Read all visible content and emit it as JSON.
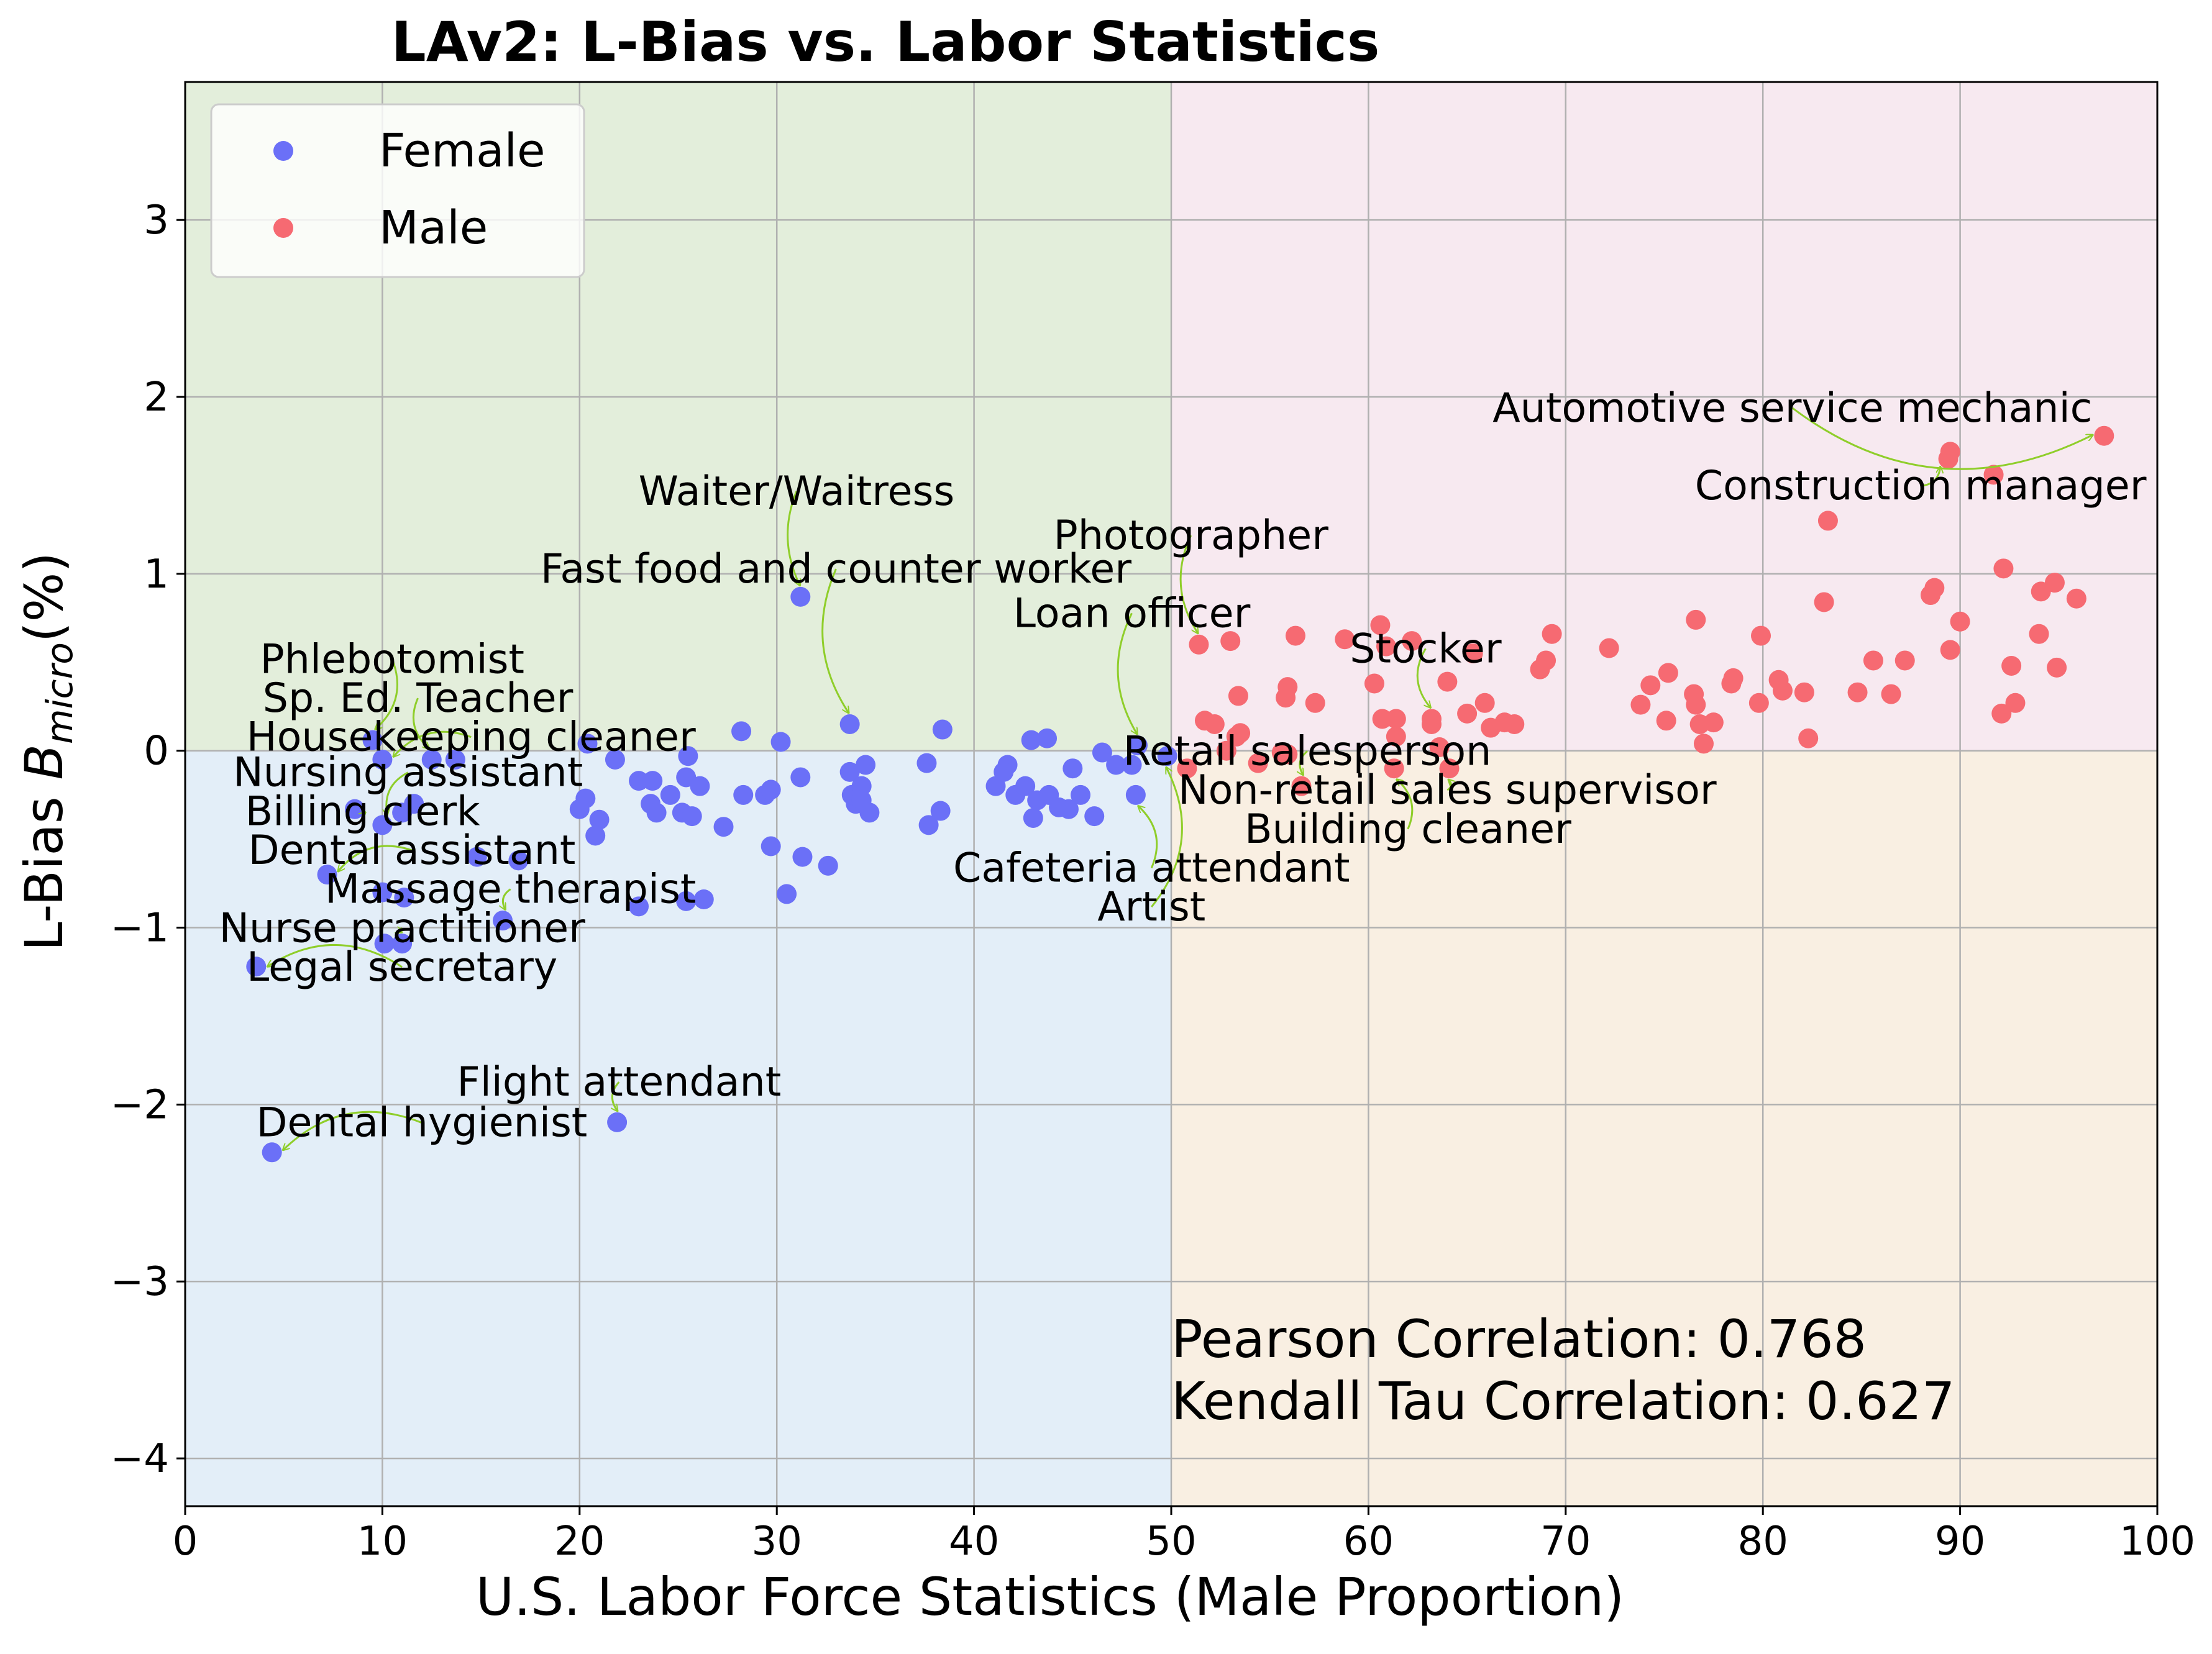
{
  "chart_data": {
    "type": "scatter",
    "title": "LAv2: L-Bias vs. Labor Statistics",
    "xlabel": "U.S. Labor Force Statistics (Male Proportion)",
    "ylabel_main": "L-Bias ",
    "ylabel_symbol": "B",
    "ylabel_sub": "micro",
    "ylabel_unit": "(%)",
    "xlim": [
      0,
      100
    ],
    "ylim": [
      -4.27,
      3.78
    ],
    "x_ticks": [
      0,
      10,
      20,
      30,
      40,
      50,
      60,
      70,
      80,
      90,
      100
    ],
    "y_ticks": [
      -4,
      -3,
      -2,
      -1,
      0,
      1,
      2,
      3
    ],
    "x_tick_labels": [
      "0",
      "10",
      "20",
      "30",
      "40",
      "50",
      "60",
      "70",
      "80",
      "90",
      "100"
    ],
    "y_tick_labels": [
      "−4",
      "−3",
      "−2",
      "−1",
      "0",
      "1",
      "2",
      "3"
    ],
    "grid": true,
    "legend_placement": "top-left",
    "quadrant_colors": {
      "top_left": "#e3eedb",
      "top_right": "#f7e9f0",
      "bottom_left": "#e3eef8",
      "bottom_right": "#f9efe2"
    },
    "arrow_color": "#8fce2a",
    "series": [
      {
        "name": "Female",
        "color": "#6b70f7",
        "points": [
          [
            4.4,
            -2.27
          ],
          [
            21.9,
            -2.1
          ],
          [
            3.6,
            -1.22
          ],
          [
            10.1,
            -1.09
          ],
          [
            11.0,
            -1.09
          ],
          [
            10.0,
            -0.8
          ],
          [
            11.1,
            -0.83
          ],
          [
            16.1,
            -0.96
          ],
          [
            23.0,
            -0.88
          ],
          [
            25.4,
            -0.85
          ],
          [
            26.3,
            -0.84
          ],
          [
            30.5,
            -0.81
          ],
          [
            32.6,
            -0.65
          ],
          [
            31.3,
            -0.6
          ],
          [
            14.8,
            -0.6
          ],
          [
            16.9,
            -0.62
          ],
          [
            7.2,
            -0.7
          ],
          [
            8.6,
            -0.33
          ],
          [
            10.0,
            -0.42
          ],
          [
            11.0,
            -0.35
          ],
          [
            11.6,
            -0.3
          ],
          [
            10.0,
            -0.05
          ],
          [
            12.5,
            -0.05
          ],
          [
            13.7,
            -0.05
          ],
          [
            9.5,
            0.06
          ],
          [
            20.4,
            0.04
          ],
          [
            20.3,
            -0.27
          ],
          [
            20.0,
            -0.33
          ],
          [
            21.0,
            -0.39
          ],
          [
            20.8,
            -0.48
          ],
          [
            21.8,
            -0.05
          ],
          [
            23.0,
            -0.17
          ],
          [
            23.7,
            -0.17
          ],
          [
            23.6,
            -0.3
          ],
          [
            24.6,
            -0.25
          ],
          [
            23.9,
            -0.35
          ],
          [
            25.2,
            -0.35
          ],
          [
            25.7,
            -0.37
          ],
          [
            25.4,
            -0.15
          ],
          [
            26.1,
            -0.2
          ],
          [
            25.5,
            -0.03
          ],
          [
            27.3,
            -0.43
          ],
          [
            28.2,
            0.11
          ],
          [
            28.3,
            -0.25
          ],
          [
            29.4,
            -0.25
          ],
          [
            29.7,
            -0.22
          ],
          [
            29.7,
            -0.54
          ],
          [
            30.2,
            0.05
          ],
          [
            31.2,
            -0.15
          ],
          [
            31.2,
            0.87
          ],
          [
            33.7,
            0.15
          ],
          [
            33.7,
            -0.12
          ],
          [
            34.0,
            -0.3
          ],
          [
            33.8,
            -0.25
          ],
          [
            34.3,
            -0.2
          ],
          [
            34.3,
            -0.28
          ],
          [
            34.5,
            -0.08
          ],
          [
            34.7,
            -0.35
          ],
          [
            37.6,
            -0.07
          ],
          [
            37.7,
            -0.42
          ],
          [
            38.3,
            -0.34
          ],
          [
            38.4,
            0.12
          ],
          [
            41.1,
            -0.2
          ],
          [
            41.7,
            -0.08
          ],
          [
            42.1,
            -0.25
          ],
          [
            42.6,
            -0.2
          ],
          [
            43.0,
            -0.38
          ],
          [
            42.9,
            0.06
          ],
          [
            43.2,
            -0.28
          ],
          [
            43.7,
            0.07
          ],
          [
            43.8,
            -0.25
          ],
          [
            44.3,
            -0.32
          ],
          [
            44.8,
            -0.33
          ],
          [
            45.0,
            -0.1
          ],
          [
            45.4,
            -0.25
          ],
          [
            46.1,
            -0.37
          ],
          [
            46.5,
            -0.01
          ],
          [
            47.2,
            -0.08
          ],
          [
            48.0,
            -0.08
          ],
          [
            48.3,
            0.03
          ],
          [
            48.2,
            -0.25
          ],
          [
            49.8,
            -0.03
          ],
          [
            41.5,
            -0.12
          ]
        ]
      },
      {
        "name": "Male",
        "color": "#f66a72",
        "points": [
          [
            97.3,
            1.78
          ],
          [
            89.5,
            1.69
          ],
          [
            89.4,
            1.65
          ],
          [
            91.7,
            1.56
          ],
          [
            83.3,
            1.3
          ],
          [
            92.2,
            1.03
          ],
          [
            94.8,
            0.95
          ],
          [
            88.7,
            0.92
          ],
          [
            88.5,
            0.88
          ],
          [
            94.1,
            0.9
          ],
          [
            95.9,
            0.86
          ],
          [
            83.1,
            0.84
          ],
          [
            90.0,
            0.73
          ],
          [
            76.6,
            0.74
          ],
          [
            89.5,
            0.57
          ],
          [
            94.0,
            0.66
          ],
          [
            79.9,
            0.65
          ],
          [
            69.3,
            0.66
          ],
          [
            72.2,
            0.58
          ],
          [
            87.2,
            0.51
          ],
          [
            85.6,
            0.51
          ],
          [
            69.0,
            0.51
          ],
          [
            68.7,
            0.46
          ],
          [
            92.6,
            0.48
          ],
          [
            94.9,
            0.47
          ],
          [
            80.8,
            0.4
          ],
          [
            78.5,
            0.41
          ],
          [
            78.4,
            0.38
          ],
          [
            75.2,
            0.44
          ],
          [
            74.3,
            0.37
          ],
          [
            81.0,
            0.34
          ],
          [
            82.1,
            0.33
          ],
          [
            84.8,
            0.33
          ],
          [
            86.5,
            0.32
          ],
          [
            76.5,
            0.32
          ],
          [
            73.8,
            0.26
          ],
          [
            76.6,
            0.26
          ],
          [
            79.8,
            0.27
          ],
          [
            92.8,
            0.27
          ],
          [
            92.1,
            0.21
          ],
          [
            75.1,
            0.17
          ],
          [
            76.8,
            0.15
          ],
          [
            77.5,
            0.16
          ],
          [
            77.0,
            0.04
          ],
          [
            82.3,
            0.07
          ],
          [
            51.4,
            0.6
          ],
          [
            53.0,
            0.62
          ],
          [
            56.3,
            0.65
          ],
          [
            58.8,
            0.63
          ],
          [
            60.6,
            0.71
          ],
          [
            62.2,
            0.62
          ],
          [
            60.9,
            0.59
          ],
          [
            65.3,
            0.55
          ],
          [
            60.3,
            0.38
          ],
          [
            64.0,
            0.39
          ],
          [
            55.9,
            0.36
          ],
          [
            55.8,
            0.3
          ],
          [
            57.3,
            0.27
          ],
          [
            53.4,
            0.31
          ],
          [
            53.3,
            0.08
          ],
          [
            53.5,
            0.1
          ],
          [
            51.7,
            0.17
          ],
          [
            52.2,
            0.15
          ],
          [
            52.8,
            0.0
          ],
          [
            55.6,
            -0.01
          ],
          [
            55.9,
            -0.02
          ],
          [
            60.7,
            0.18
          ],
          [
            61.4,
            0.18
          ],
          [
            61.4,
            0.08
          ],
          [
            63.2,
            0.15
          ],
          [
            63.2,
            0.18
          ],
          [
            63.6,
            0.02
          ],
          [
            65.0,
            0.21
          ],
          [
            65.9,
            0.27
          ],
          [
            66.2,
            0.13
          ],
          [
            66.9,
            0.16
          ],
          [
            67.4,
            0.15
          ],
          [
            61.3,
            -0.1
          ],
          [
            64.1,
            -0.1
          ],
          [
            56.6,
            -0.2
          ],
          [
            50.8,
            -0.1
          ],
          [
            54.4,
            -0.07
          ]
        ]
      }
    ],
    "annotations": [
      {
        "text": "Waiter/Waitress",
        "tx": 31.0,
        "ty": 1.39,
        "target": [
          31.2,
          0.87
        ],
        "bend": 0.2
      },
      {
        "text": "Fast food and counter worker",
        "tx": 33.0,
        "ty": 0.95,
        "target": [
          33.7,
          0.15
        ],
        "bend": 0.25
      },
      {
        "text": "Phlebotomist",
        "tx": 10.5,
        "ty": 0.44,
        "target": [
          9.5,
          0.06
        ],
        "bend": -0.3
      },
      {
        "text": "Sp. Ed. Teacher",
        "tx": 11.8,
        "ty": 0.22,
        "target": [
          12.5,
          -0.05
        ],
        "bend": 0.3
      },
      {
        "text": "Housekeeping cleaner",
        "tx": 14.5,
        "ty": 0.0,
        "target": [
          10.0,
          -0.05
        ],
        "bend": 0.3
      },
      {
        "text": "Nursing assistant",
        "tx": 11.3,
        "ty": -0.2,
        "target": [
          10.0,
          -0.42
        ],
        "bend": 0.3
      },
      {
        "text": "Billing clerk",
        "tx": 9.0,
        "ty": -0.42,
        "target": [
          8.6,
          -0.33
        ],
        "bend": -0.3
      },
      {
        "text": "Dental assistant",
        "tx": 11.5,
        "ty": -0.64,
        "target": [
          7.2,
          -0.7
        ],
        "bend": 0.3
      },
      {
        "text": "Massage therapist",
        "tx": 16.5,
        "ty": -0.86,
        "target": [
          16.1,
          -0.96
        ],
        "bend": 0.3
      },
      {
        "text": "Nurse practitioner",
        "tx": 11.0,
        "ty": -1.08,
        "target": [
          11.0,
          -1.09
        ],
        "bend": 0.3
      },
      {
        "text": "Legal secretary",
        "tx": 11.0,
        "ty": -1.3,
        "target": [
          3.6,
          -1.22
        ],
        "bend": 0.3
      },
      {
        "text": "Flight attendant",
        "tx": 22.0,
        "ty": -1.95,
        "target": [
          21.9,
          -2.1
        ],
        "bend": 0.3
      },
      {
        "text": "Dental hygienist",
        "tx": 12.0,
        "ty": -2.18,
        "target": [
          4.4,
          -2.27
        ],
        "bend": 0.3
      },
      {
        "text": "Photographer",
        "tx": 51.0,
        "ty": 1.14,
        "target": [
          51.4,
          0.6
        ],
        "bend": 0.25
      },
      {
        "text": "Loan officer",
        "tx": 48.0,
        "ty": 0.7,
        "target": [
          48.3,
          0.03
        ],
        "bend": 0.25
      },
      {
        "text": "Stocker",
        "tx": 62.9,
        "ty": 0.5,
        "target": [
          63.2,
          0.18
        ],
        "bend": 0.3
      },
      {
        "text": "Retail salesperson",
        "tx": 56.9,
        "ty": -0.08,
        "target": [
          56.6,
          -0.2
        ],
        "bend": 0.3
      },
      {
        "text": "Non-retail sales supervisor",
        "tx": 64.0,
        "ty": -0.3,
        "target": [
          64.1,
          -0.1
        ],
        "bend": 0.3
      },
      {
        "text": "Building cleaner",
        "tx": 62.0,
        "ty": -0.52,
        "target": [
          61.3,
          -0.1
        ],
        "bend": 0.3
      },
      {
        "text": "Cafeteria attendant",
        "tx": 49.0,
        "ty": -0.74,
        "target": [
          48.2,
          -0.25
        ],
        "bend": 0.3
      },
      {
        "text": "Artist",
        "tx": 49.0,
        "ty": -0.96,
        "target": [
          49.8,
          -0.03
        ],
        "bend": 0.3
      },
      {
        "text": "Automotive service mechanic",
        "tx": 81.5,
        "ty": 1.86,
        "target": [
          97.3,
          1.78
        ],
        "bend": 0.3
      },
      {
        "text": "Construction manager",
        "tx": 88.0,
        "ty": 1.42,
        "target": [
          89.4,
          1.65
        ],
        "bend": 0.3
      }
    ],
    "correlation_text": [
      "Pearson Correlation: 0.768",
      "Kendall Tau Correlation: 0.627"
    ]
  }
}
